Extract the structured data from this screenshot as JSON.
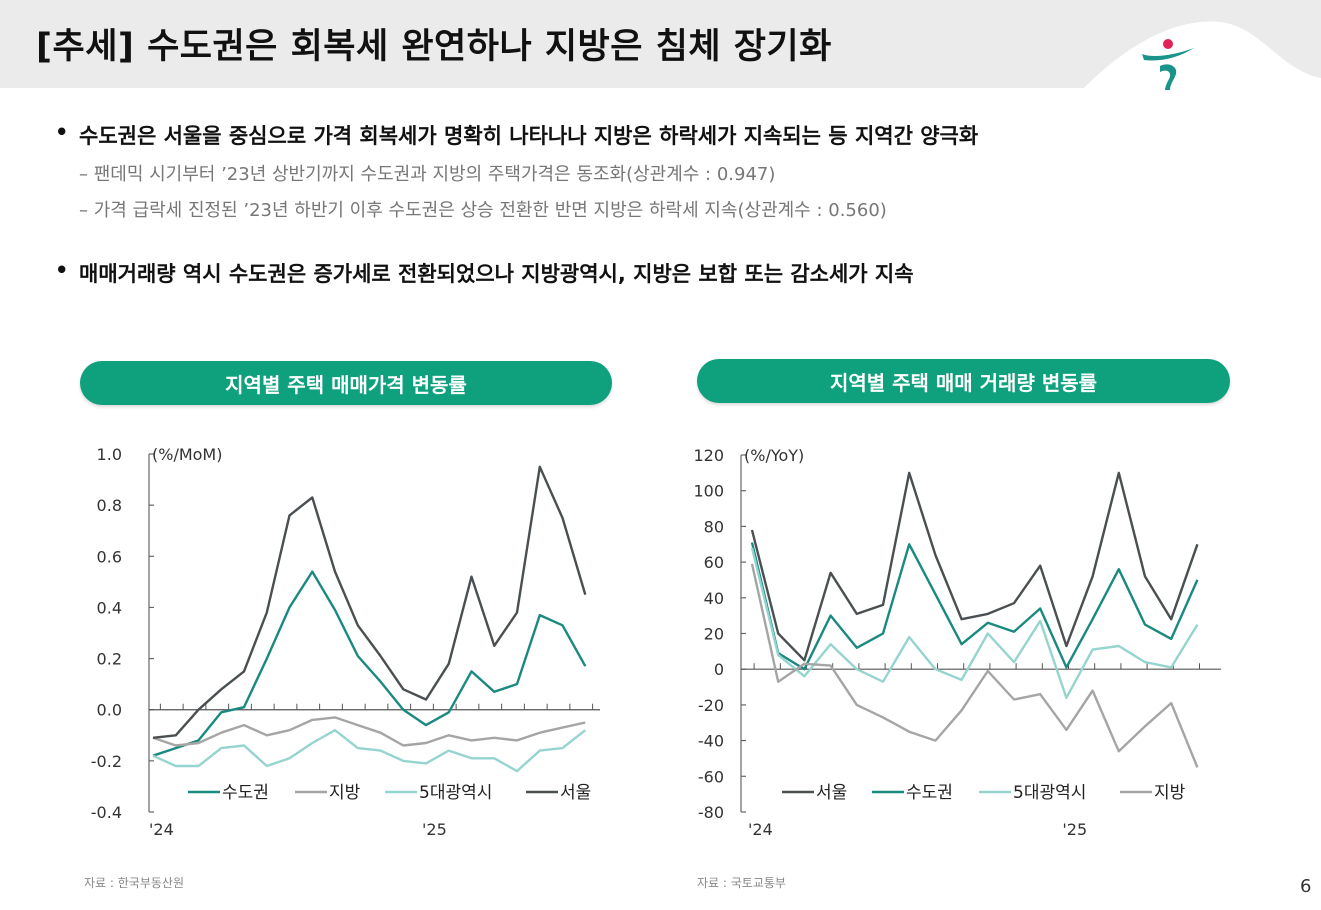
{
  "header": {
    "title": "[추세] 수도권은 회복세 완연하나 지방은 침체 장기화",
    "logo_icon": "hana-logo-icon"
  },
  "bullets": [
    {
      "text": "수도권은 서울을 중심으로 가격 회복세가 명확히 나타나나 지방은 하락세가 지속되는 등 지역간 양극화",
      "subs": [
        "– 팬데믹 시기부터 ’23년 상반기까지 수도권과 지방의 주택가격은 동조화(상관계수 : 0.947)",
        "– 가격 급락세 진정된 ’23년 하반기 이후 수도권은 상승 전환한 반면 지방은 하락세 지속(상관계수 : 0.560)"
      ]
    },
    {
      "text": "매매거래량 역시 수도권은 증가세로 전환되었으나 지방광역시, 지방은 보합 또는 감소세가 지속",
      "subs": []
    }
  ],
  "bullet_symbol": "•",
  "sources": [
    "자료 : 한국부동산원",
    "자료 : 국토교통부"
  ],
  "page_number": "6",
  "colors": {
    "pill": "#0fa07e",
    "seoul": "#4a4f51",
    "capital": "#1a8a80",
    "metro5": "#95d4cf",
    "provinces": "#a5a5a5"
  },
  "chart_data": [
    {
      "type": "line",
      "title": "지역별 주택 매매가격 변동률",
      "unit_label": "(%/MoM)",
      "ylim": [
        -0.4,
        1.0
      ],
      "yticks": [
        -0.4,
        -0.2,
        0.0,
        0.2,
        0.4,
        0.6,
        0.8,
        1.0
      ],
      "ytick_labels": [
        "-0.4",
        "-0.2",
        "0.0",
        "0.2",
        "0.4",
        "0.6",
        "0.8",
        "1.0"
      ],
      "x_labels": [
        {
          "index": 0,
          "label": "'24"
        },
        {
          "index": 12,
          "label": "'25"
        }
      ],
      "legend_position": "bottom",
      "series": [
        {
          "name": "수도권",
          "color_key": "capital",
          "values": [
            -0.18,
            -0.15,
            -0.12,
            -0.01,
            0.01,
            0.2,
            0.4,
            0.54,
            0.39,
            0.21,
            0.11,
            0.0,
            -0.06,
            -0.01,
            0.15,
            0.07,
            0.1,
            0.37,
            0.33,
            0.17
          ]
        },
        {
          "name": "지방",
          "color_key": "provinces",
          "values": [
            -0.11,
            -0.14,
            -0.13,
            -0.09,
            -0.06,
            -0.1,
            -0.08,
            -0.04,
            -0.03,
            -0.06,
            -0.09,
            -0.14,
            -0.13,
            -0.1,
            -0.12,
            -0.11,
            -0.12,
            -0.09,
            -0.07,
            -0.05
          ]
        },
        {
          "name": "5대광역시",
          "color_key": "metro5",
          "values": [
            -0.18,
            -0.22,
            -0.22,
            -0.15,
            -0.14,
            -0.22,
            -0.19,
            -0.13,
            -0.08,
            -0.15,
            -0.16,
            -0.2,
            -0.21,
            -0.16,
            -0.19,
            -0.19,
            -0.24,
            -0.16,
            -0.15,
            -0.08
          ]
        },
        {
          "name": "서울",
          "color_key": "seoul",
          "values": [
            -0.11,
            -0.1,
            0.0,
            0.08,
            0.15,
            0.38,
            0.76,
            0.83,
            0.54,
            0.33,
            0.21,
            0.08,
            0.04,
            0.18,
            0.52,
            0.25,
            0.38,
            0.95,
            0.75,
            0.45
          ]
        }
      ]
    },
    {
      "type": "line",
      "title": "지역별 주택 매매 거래량 변동률",
      "unit_label": "(%/YoY)",
      "ylim": [
        -80,
        120
      ],
      "yticks": [
        -80,
        -60,
        -40,
        -20,
        0,
        20,
        40,
        60,
        80,
        100,
        120
      ],
      "ytick_labels": [
        "-80",
        "-60",
        "-40",
        "-20",
        "0",
        "20",
        "40",
        "60",
        "80",
        "100",
        "120"
      ],
      "x_labels": [
        {
          "index": 0,
          "label": "'24"
        },
        {
          "index": 12,
          "label": "'25"
        }
      ],
      "legend_position": "bottom",
      "series": [
        {
          "name": "서울",
          "color_key": "seoul",
          "values": [
            78,
            20,
            5,
            54,
            31,
            36,
            110,
            64,
            28,
            31,
            37,
            58,
            13,
            52,
            110,
            52,
            28,
            70
          ]
        },
        {
          "name": "수도권",
          "color_key": "capital",
          "values": [
            71,
            9,
            0,
            30,
            12,
            20,
            70,
            42,
            14,
            26,
            21,
            34,
            1,
            28,
            56,
            25,
            17,
            50
          ]
        },
        {
          "name": "5대광역시",
          "color_key": "metro5",
          "values": [
            68,
            8,
            -4,
            14,
            0,
            -7,
            18,
            0,
            -6,
            20,
            4,
            27,
            -16,
            11,
            13,
            4,
            1,
            25
          ]
        },
        {
          "name": "지방",
          "color_key": "provinces",
          "values": [
            59,
            -7,
            3,
            2,
            -20,
            -27,
            -35,
            -40,
            -23,
            -1,
            -17,
            -14,
            -34,
            -12,
            -46,
            -32,
            -19,
            -55
          ]
        }
      ]
    }
  ]
}
